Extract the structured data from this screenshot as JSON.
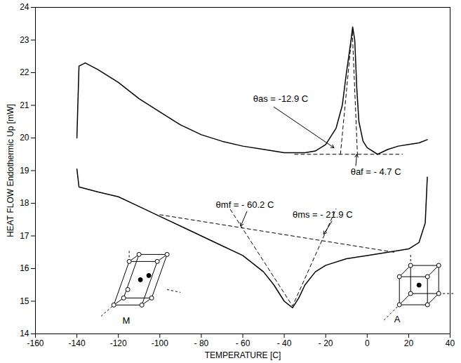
{
  "chart_data": {
    "type": "line",
    "xlabel": "TEMPERATURE [C]",
    "ylabel": "HEAT FLOW Endothermic Up [mW]",
    "xlim": [
      -160,
      40
    ],
    "ylim": [
      14,
      24
    ],
    "xticks": [
      -160,
      -140,
      -120,
      -100,
      {
        "value": -80,
        "label": "- 80"
      },
      {
        "value": -60,
        "label": "- 60"
      },
      {
        "value": -40,
        "label": "- 40"
      },
      {
        "value": -20,
        "label": "- 20"
      },
      0,
      20,
      40
    ],
    "yticks": [
      14,
      15,
      16,
      17,
      18,
      19,
      20,
      21,
      22,
      23,
      24
    ],
    "series": [
      {
        "color": "#000000",
        "line_style": "solid",
        "x": [
          -140,
          -139,
          -136,
          -130,
          -120,
          -110,
          -100,
          -90,
          -80,
          -70,
          -60,
          -50,
          -40,
          -30,
          -25,
          -20,
          -15,
          -12,
          -10,
          -8,
          -7,
          -6,
          -5,
          -4,
          -2,
          0,
          5,
          10,
          15,
          20,
          25,
          29
        ],
        "values": [
          20.0,
          22.2,
          22.3,
          22.1,
          21.7,
          21.2,
          20.8,
          20.4,
          20.1,
          19.9,
          19.75,
          19.65,
          19.55,
          19.55,
          19.6,
          19.8,
          20.3,
          21.0,
          22.0,
          22.9,
          23.4,
          23.0,
          21.5,
          20.5,
          19.9,
          19.7,
          19.5,
          19.65,
          19.75,
          19.8,
          19.85,
          19.95
        ]
      },
      {
        "color": "#000000",
        "line_style": "solid",
        "x": [
          -140,
          -139,
          -130,
          -120,
          -110,
          -100,
          -90,
          -80,
          -70,
          -60,
          -50,
          -45,
          -40,
          -36,
          -33,
          -30,
          -25,
          -20,
          -10,
          0,
          10,
          20,
          25,
          28,
          29
        ],
        "values": [
          19.05,
          18.5,
          18.35,
          18.2,
          17.9,
          17.6,
          17.3,
          17.0,
          16.7,
          16.4,
          15.9,
          15.5,
          15.0,
          14.8,
          15.1,
          15.5,
          15.9,
          16.1,
          16.3,
          16.4,
          16.5,
          16.6,
          16.8,
          17.4,
          18.8
        ]
      },
      {
        "color": "#000000",
        "line_style": "dashed",
        "x": [
          -35,
          17
        ],
        "values": [
          19.5,
          19.5
        ]
      },
      {
        "color": "#000000",
        "line_style": "dashed",
        "x": [
          -12.9,
          -7.2,
          -4.7
        ],
        "values": [
          19.5,
          23.3,
          19.5
        ]
      },
      {
        "color": "#000000",
        "line_style": "dashed",
        "x": [
          -100,
          14
        ],
        "values": [
          17.65,
          16.49
        ]
      },
      {
        "color": "#000000",
        "line_style": "dashed",
        "x": [
          -66,
          -36,
          -15
        ],
        "values": [
          17.81,
          14.85,
          17.83
        ]
      }
    ],
    "annotations": [
      {
        "text": "θas = -12.9 C",
        "x": -55,
        "y": 21.2,
        "arrow_from": [
          -45,
          20.95
        ],
        "arrow_to": [
          -16,
          19.7
        ]
      },
      {
        "text": "θaf = - 4.7 C",
        "x": -8,
        "y": 18.95,
        "arrow_from": [
          -5.5,
          19.15
        ],
        "arrow_to": [
          -5,
          19.5
        ]
      },
      {
        "text": "θmf = - 60.2 C",
        "x": -73,
        "y": 17.95,
        "arrow_from": [
          -58,
          17.75
        ],
        "arrow_to": [
          -61,
          17.3
        ]
      },
      {
        "text": "θms = - 21.9 C",
        "x": -36,
        "y": 17.65,
        "arrow_from": [
          -17,
          17.45
        ],
        "arrow_to": [
          -21,
          17.05
        ]
      },
      {
        "text": "M",
        "x": -118,
        "y": 14.4
      },
      {
        "text": "A",
        "x": 13,
        "y": 14.45
      }
    ]
  }
}
